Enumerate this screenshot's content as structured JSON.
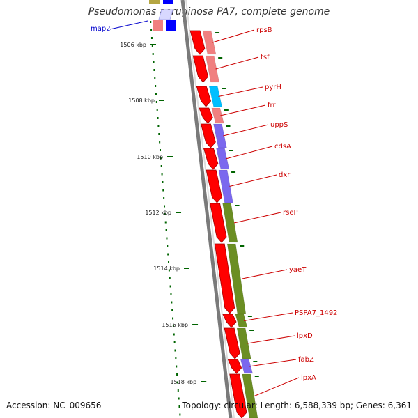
{
  "header": {
    "title": "Pseudomonas aeruginosa PA7, complete genome"
  },
  "footer": {
    "accession": "Accession: NC_009656",
    "summary": "Topology: circular; Length: 6,588,339 bp; Genes: 6,361"
  },
  "scale": {
    "ticks": [
      "1506 kbp",
      "1508 kbp",
      "1510 kbp",
      "1512 kbp",
      "1514 kbp",
      "1516 kbp",
      "1518 kbp"
    ]
  },
  "genes": [
    {
      "label": "map2",
      "color": "#0000cc",
      "cog_color": "#0000ff"
    },
    {
      "label": "rpsB",
      "color": "#cc0000",
      "cog_color": "#f08080"
    },
    {
      "label": "tsf",
      "color": "#cc0000",
      "cog_color": "#f08080"
    },
    {
      "label": "pyrH",
      "color": "#cc0000",
      "cog_color": "#00bfff"
    },
    {
      "label": "frr",
      "color": "#cc0000",
      "cog_color": "#f08080"
    },
    {
      "label": "uppS",
      "color": "#cc0000",
      "cog_color": "#7b68ee"
    },
    {
      "label": "cdsA",
      "color": "#cc0000",
      "cog_color": "#7b68ee"
    },
    {
      "label": "dxr",
      "color": "#cc0000",
      "cog_color": "#7b68ee"
    },
    {
      "label": "rseP",
      "color": "#cc0000",
      "cog_color": "#6b8e23"
    },
    {
      "label": "yaeT",
      "color": "#cc0000",
      "cog_color": "#6b8e23"
    },
    {
      "label": "PSPA7_1492",
      "color": "#cc0000",
      "cog_color": "#6b8e23"
    },
    {
      "label": "lpxD",
      "color": "#cc0000",
      "cog_color": "#6b8e23"
    },
    {
      "label": "fabZ",
      "color": "#cc0000",
      "cog_color": "#7b68ee"
    },
    {
      "label": "lpxA",
      "color": "#cc0000",
      "cog_color": "#6b8e23"
    }
  ],
  "colors": {
    "forward_cds": "#ff0000",
    "backbone": "#808080",
    "gc_tick": "#006400",
    "label_line": "#cc0000"
  }
}
